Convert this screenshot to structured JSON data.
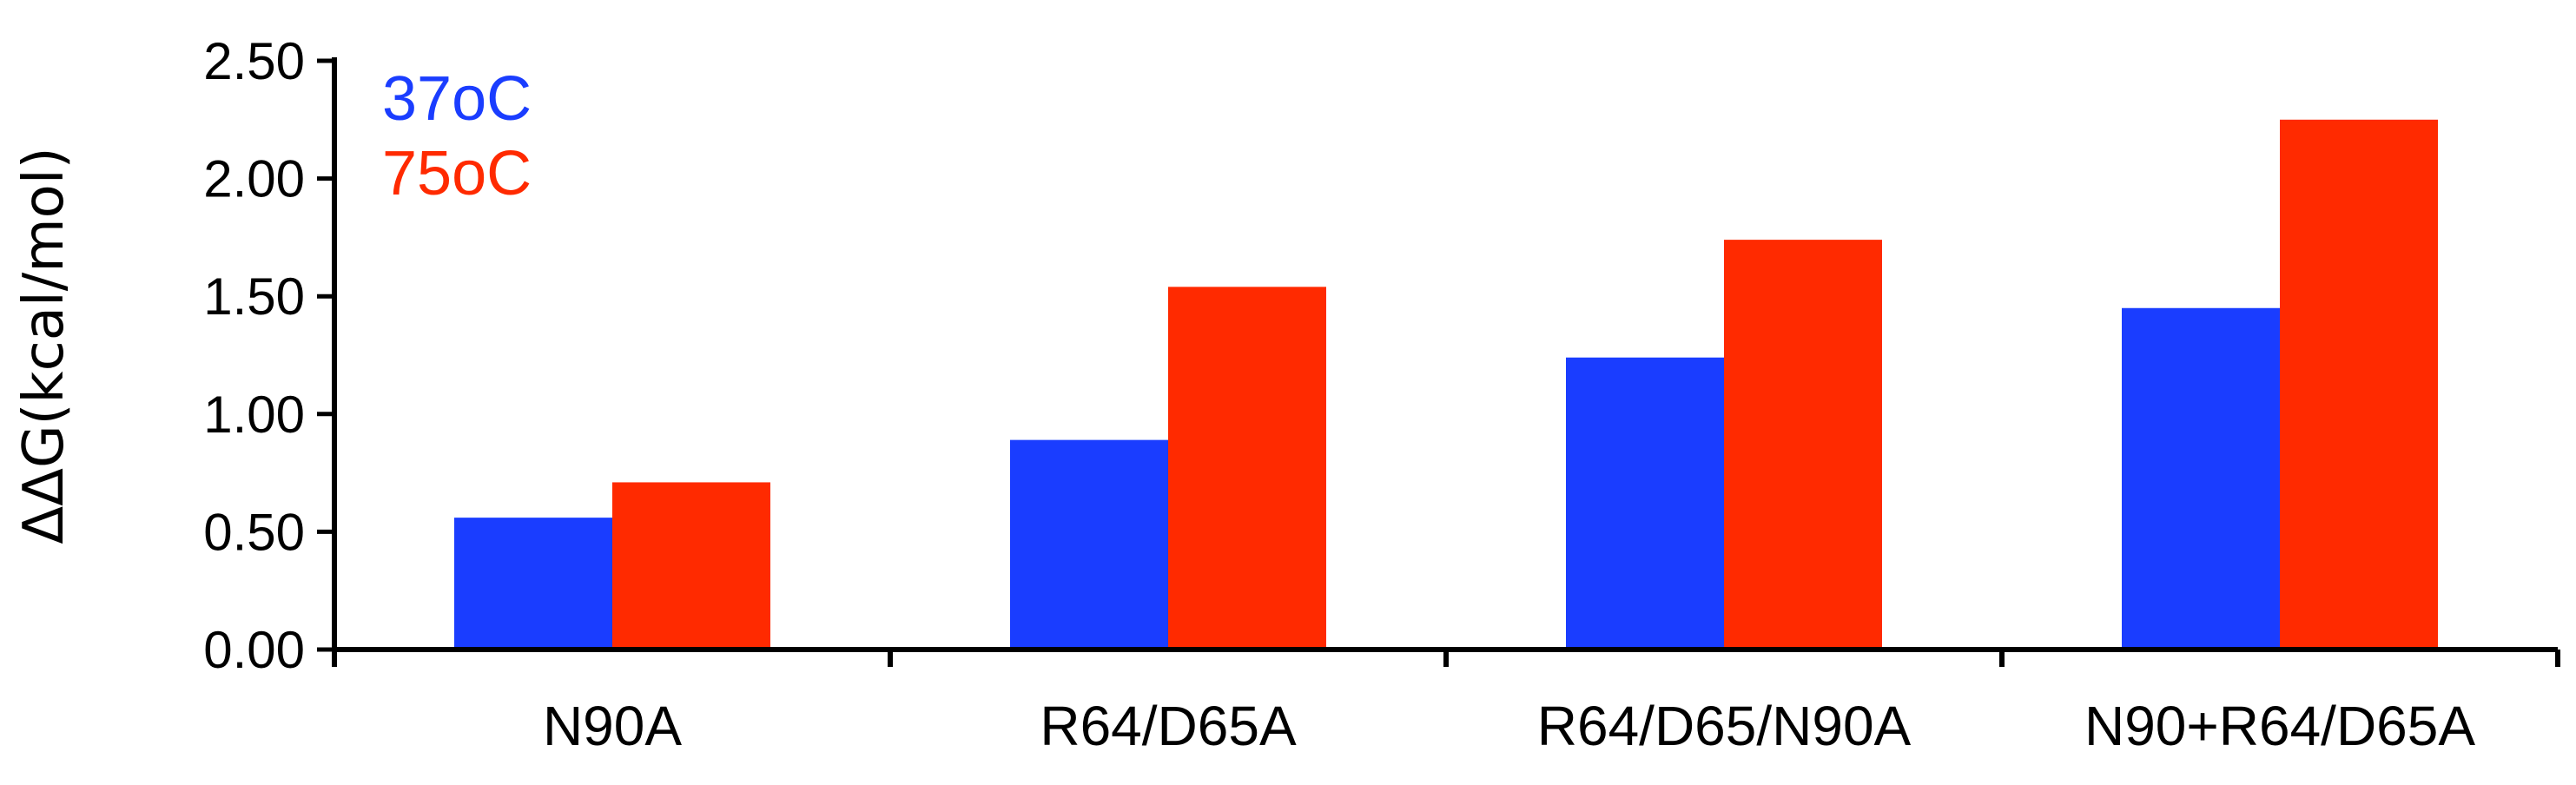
{
  "chart_data": {
    "type": "bar",
    "title": "",
    "xlabel": "",
    "ylabel": "ΔΔG(kcal/mol)",
    "ylim": [
      0,
      2.5
    ],
    "yticks": [
      "0.00",
      "0.50",
      "1.00",
      "1.50",
      "2.00",
      "2.50"
    ],
    "categories": [
      "N90A",
      "R64/D65A",
      "R64/D65/N90A",
      "N90+R64/D65A"
    ],
    "series": [
      {
        "name": "37oC",
        "color": "#1a3dff",
        "values": [
          0.56,
          0.89,
          1.24,
          1.45
        ]
      },
      {
        "name": "75oC",
        "color": "#ff2a00",
        "values": [
          0.71,
          1.54,
          1.74,
          2.25
        ]
      }
    ],
    "grid": false,
    "legend": "top-left"
  }
}
